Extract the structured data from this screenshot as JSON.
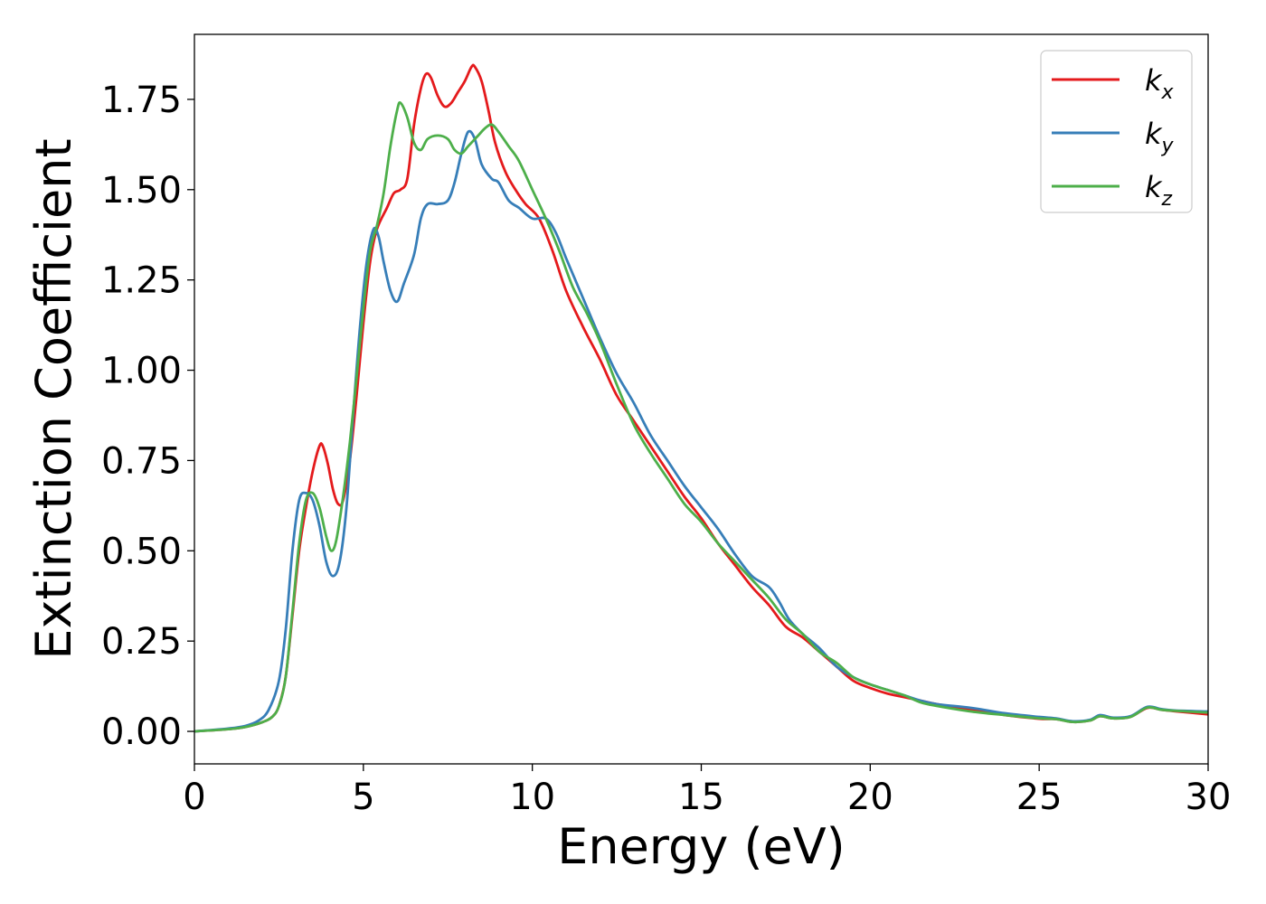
{
  "chart_data": {
    "type": "line",
    "xlabel": "Energy (eV)",
    "ylabel": "Extinction Coefficient",
    "xlim": [
      0,
      30
    ],
    "ylim": [
      -0.09,
      1.93
    ],
    "xticks": [
      0,
      5,
      10,
      15,
      20,
      25,
      30
    ],
    "xtick_labels": [
      "0",
      "5",
      "10",
      "15",
      "20",
      "25",
      "30"
    ],
    "yticks": [
      0,
      0.25,
      0.5,
      0.75,
      1.0,
      1.25,
      1.5,
      1.75
    ],
    "ytick_labels": [
      "0.00",
      "0.25",
      "0.50",
      "0.75",
      "1.00",
      "1.25",
      "1.50",
      "1.75"
    ],
    "grid": false,
    "legend_position": "top-right",
    "series": [
      {
        "name": "k_x",
        "legend_main": "k",
        "legend_sub": "x",
        "color": "#e41a1c",
        "points": [
          [
            0,
            0
          ],
          [
            1,
            0.006
          ],
          [
            1.5,
            0.012
          ],
          [
            2,
            0.025
          ],
          [
            2.3,
            0.04
          ],
          [
            2.5,
            0.07
          ],
          [
            2.7,
            0.15
          ],
          [
            2.9,
            0.32
          ],
          [
            3.1,
            0.5
          ],
          [
            3.3,
            0.62
          ],
          [
            3.5,
            0.72
          ],
          [
            3.7,
            0.79
          ],
          [
            3.8,
            0.79
          ],
          [
            3.95,
            0.74
          ],
          [
            4.1,
            0.67
          ],
          [
            4.25,
            0.63
          ],
          [
            4.4,
            0.64
          ],
          [
            4.6,
            0.75
          ],
          [
            4.8,
            0.93
          ],
          [
            5.0,
            1.13
          ],
          [
            5.2,
            1.3
          ],
          [
            5.4,
            1.39
          ],
          [
            5.7,
            1.45
          ],
          [
            5.9,
            1.49
          ],
          [
            6.1,
            1.5
          ],
          [
            6.3,
            1.53
          ],
          [
            6.5,
            1.68
          ],
          [
            6.7,
            1.78
          ],
          [
            6.85,
            1.82
          ],
          [
            7.0,
            1.81
          ],
          [
            7.2,
            1.76
          ],
          [
            7.4,
            1.73
          ],
          [
            7.6,
            1.74
          ],
          [
            7.8,
            1.77
          ],
          [
            8.0,
            1.8
          ],
          [
            8.2,
            1.84
          ],
          [
            8.3,
            1.84
          ],
          [
            8.5,
            1.8
          ],
          [
            8.7,
            1.72
          ],
          [
            8.9,
            1.63
          ],
          [
            9.2,
            1.55
          ],
          [
            9.5,
            1.5
          ],
          [
            9.8,
            1.46
          ],
          [
            10.2,
            1.42
          ],
          [
            10.6,
            1.33
          ],
          [
            11.0,
            1.22
          ],
          [
            11.5,
            1.12
          ],
          [
            12.0,
            1.03
          ],
          [
            12.5,
            0.93
          ],
          [
            13.0,
            0.86
          ],
          [
            13.5,
            0.79
          ],
          [
            14.0,
            0.72
          ],
          [
            14.5,
            0.65
          ],
          [
            15.0,
            0.59
          ],
          [
            15.5,
            0.52
          ],
          [
            16.0,
            0.46
          ],
          [
            16.5,
            0.4
          ],
          [
            17.0,
            0.35
          ],
          [
            17.5,
            0.29
          ],
          [
            18.0,
            0.26
          ],
          [
            18.5,
            0.22
          ],
          [
            19.0,
            0.18
          ],
          [
            19.5,
            0.14
          ],
          [
            20.0,
            0.12
          ],
          [
            20.5,
            0.105
          ],
          [
            21.0,
            0.095
          ],
          [
            21.5,
            0.085
          ],
          [
            22.0,
            0.075
          ],
          [
            23.0,
            0.06
          ],
          [
            24.0,
            0.045
          ],
          [
            25.0,
            0.035
          ],
          [
            25.5,
            0.034
          ],
          [
            26.0,
            0.026
          ],
          [
            26.5,
            0.03
          ],
          [
            26.8,
            0.042
          ],
          [
            27.2,
            0.036
          ],
          [
            27.7,
            0.04
          ],
          [
            28.2,
            0.065
          ],
          [
            28.6,
            0.06
          ],
          [
            29.0,
            0.056
          ],
          [
            30.0,
            0.047
          ]
        ]
      },
      {
        "name": "k_y",
        "legend_main": "k",
        "legend_sub": "y",
        "color": "#377eb8",
        "points": [
          [
            0,
            0
          ],
          [
            1,
            0.008
          ],
          [
            1.5,
            0.015
          ],
          [
            1.9,
            0.03
          ],
          [
            2.2,
            0.06
          ],
          [
            2.5,
            0.14
          ],
          [
            2.7,
            0.28
          ],
          [
            2.9,
            0.5
          ],
          [
            3.1,
            0.64
          ],
          [
            3.3,
            0.66
          ],
          [
            3.5,
            0.64
          ],
          [
            3.7,
            0.57
          ],
          [
            3.9,
            0.47
          ],
          [
            4.1,
            0.43
          ],
          [
            4.3,
            0.47
          ],
          [
            4.5,
            0.62
          ],
          [
            4.7,
            0.88
          ],
          [
            4.9,
            1.12
          ],
          [
            5.1,
            1.3
          ],
          [
            5.3,
            1.39
          ],
          [
            5.45,
            1.37
          ],
          [
            5.6,
            1.3
          ],
          [
            5.8,
            1.22
          ],
          [
            6.0,
            1.19
          ],
          [
            6.2,
            1.24
          ],
          [
            6.5,
            1.32
          ],
          [
            6.7,
            1.42
          ],
          [
            6.9,
            1.46
          ],
          [
            7.2,
            1.46
          ],
          [
            7.5,
            1.47
          ],
          [
            7.7,
            1.52
          ],
          [
            7.9,
            1.6
          ],
          [
            8.1,
            1.66
          ],
          [
            8.3,
            1.64
          ],
          [
            8.5,
            1.57
          ],
          [
            8.8,
            1.53
          ],
          [
            9.0,
            1.52
          ],
          [
            9.3,
            1.47
          ],
          [
            9.6,
            1.45
          ],
          [
            10.0,
            1.42
          ],
          [
            10.4,
            1.42
          ],
          [
            10.7,
            1.38
          ],
          [
            11.0,
            1.31
          ],
          [
            11.5,
            1.2
          ],
          [
            12.0,
            1.09
          ],
          [
            12.5,
            0.99
          ],
          [
            13.0,
            0.91
          ],
          [
            13.5,
            0.82
          ],
          [
            14.0,
            0.75
          ],
          [
            14.5,
            0.68
          ],
          [
            15.0,
            0.62
          ],
          [
            15.5,
            0.56
          ],
          [
            16.0,
            0.49
          ],
          [
            16.5,
            0.43
          ],
          [
            17.0,
            0.4
          ],
          [
            17.3,
            0.36
          ],
          [
            17.6,
            0.31
          ],
          [
            18.0,
            0.27
          ],
          [
            18.5,
            0.23
          ],
          [
            19.0,
            0.18
          ],
          [
            19.5,
            0.15
          ],
          [
            20.0,
            0.13
          ],
          [
            20.5,
            0.115
          ],
          [
            21.0,
            0.1
          ],
          [
            21.5,
            0.085
          ],
          [
            22.0,
            0.075
          ],
          [
            23.0,
            0.065
          ],
          [
            24.0,
            0.05
          ],
          [
            25.0,
            0.04
          ],
          [
            25.5,
            0.036
          ],
          [
            26.0,
            0.028
          ],
          [
            26.5,
            0.032
          ],
          [
            26.8,
            0.045
          ],
          [
            27.2,
            0.038
          ],
          [
            27.7,
            0.042
          ],
          [
            28.2,
            0.068
          ],
          [
            28.6,
            0.062
          ],
          [
            29.0,
            0.058
          ],
          [
            30.0,
            0.055
          ]
        ]
      },
      {
        "name": "k_z",
        "legend_main": "k",
        "legend_sub": "z",
        "color": "#4daf4a",
        "points": [
          [
            0,
            0
          ],
          [
            1,
            0.006
          ],
          [
            1.5,
            0.012
          ],
          [
            2,
            0.025
          ],
          [
            2.3,
            0.04
          ],
          [
            2.5,
            0.07
          ],
          [
            2.7,
            0.15
          ],
          [
            2.9,
            0.33
          ],
          [
            3.1,
            0.52
          ],
          [
            3.3,
            0.64
          ],
          [
            3.5,
            0.66
          ],
          [
            3.7,
            0.62
          ],
          [
            3.9,
            0.54
          ],
          [
            4.05,
            0.5
          ],
          [
            4.2,
            0.53
          ],
          [
            4.4,
            0.65
          ],
          [
            4.6,
            0.8
          ],
          [
            4.8,
            0.98
          ],
          [
            5.0,
            1.17
          ],
          [
            5.2,
            1.33
          ],
          [
            5.4,
            1.4
          ],
          [
            5.6,
            1.49
          ],
          [
            5.8,
            1.62
          ],
          [
            6.0,
            1.72
          ],
          [
            6.1,
            1.74
          ],
          [
            6.3,
            1.7
          ],
          [
            6.5,
            1.63
          ],
          [
            6.7,
            1.61
          ],
          [
            6.9,
            1.64
          ],
          [
            7.2,
            1.65
          ],
          [
            7.5,
            1.64
          ],
          [
            7.7,
            1.61
          ],
          [
            7.9,
            1.6
          ],
          [
            8.1,
            1.62
          ],
          [
            8.4,
            1.65
          ],
          [
            8.6,
            1.67
          ],
          [
            8.8,
            1.68
          ],
          [
            9.0,
            1.66
          ],
          [
            9.3,
            1.62
          ],
          [
            9.6,
            1.58
          ],
          [
            10.0,
            1.5
          ],
          [
            10.4,
            1.42
          ],
          [
            10.8,
            1.33
          ],
          [
            11.2,
            1.23
          ],
          [
            11.6,
            1.16
          ],
          [
            12.0,
            1.08
          ],
          [
            12.5,
            0.96
          ],
          [
            13.0,
            0.85
          ],
          [
            13.5,
            0.77
          ],
          [
            14.0,
            0.7
          ],
          [
            14.5,
            0.63
          ],
          [
            15.0,
            0.58
          ],
          [
            15.5,
            0.52
          ],
          [
            16.0,
            0.47
          ],
          [
            16.5,
            0.42
          ],
          [
            17.0,
            0.37
          ],
          [
            17.5,
            0.31
          ],
          [
            18.0,
            0.27
          ],
          [
            18.5,
            0.22
          ],
          [
            19.0,
            0.19
          ],
          [
            19.5,
            0.15
          ],
          [
            20.0,
            0.13
          ],
          [
            20.5,
            0.115
          ],
          [
            21.0,
            0.1
          ],
          [
            21.5,
            0.08
          ],
          [
            22.0,
            0.07
          ],
          [
            23.0,
            0.055
          ],
          [
            24.0,
            0.045
          ],
          [
            25.0,
            0.036
          ],
          [
            25.5,
            0.034
          ],
          [
            26.0,
            0.026
          ],
          [
            26.5,
            0.03
          ],
          [
            26.8,
            0.042
          ],
          [
            27.2,
            0.036
          ],
          [
            27.7,
            0.04
          ],
          [
            28.2,
            0.066
          ],
          [
            28.6,
            0.06
          ],
          [
            29.0,
            0.057
          ],
          [
            30.0,
            0.052
          ]
        ]
      }
    ]
  }
}
